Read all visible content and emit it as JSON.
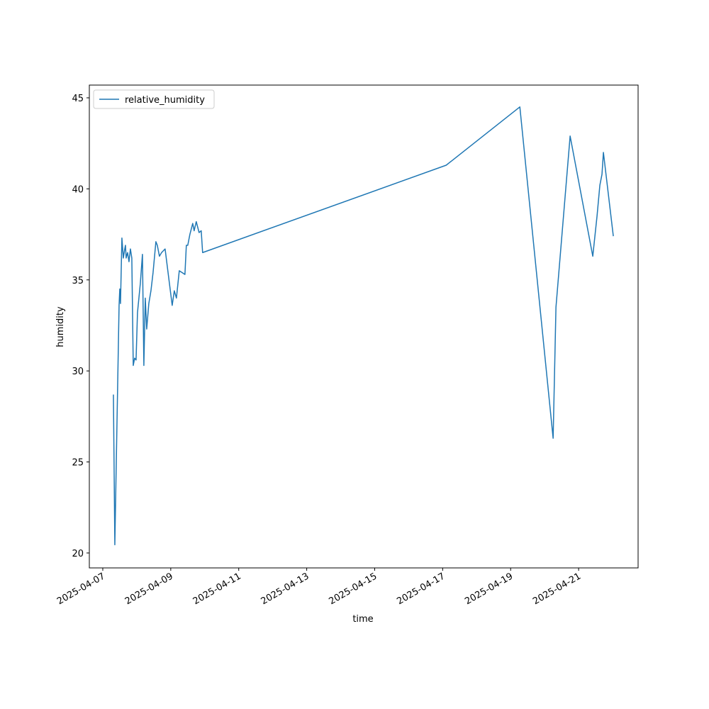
{
  "chart_data": {
    "type": "line",
    "xlabel": "time",
    "ylabel": "humidity",
    "x": [
      "2025-04-07 07:30",
      "2025-04-07 08:30",
      "2025-04-07 11:30",
      "2025-04-07 12:00",
      "2025-04-07 12:30",
      "2025-04-07 13:30",
      "2025-04-07 14:30",
      "2025-04-07 15:30",
      "2025-04-07 16:00",
      "2025-04-07 16:30",
      "2025-04-07 17:30",
      "2025-04-07 18:30",
      "2025-04-07 19:30",
      "2025-04-07 20:30",
      "2025-04-07 21:30",
      "2025-04-07 22:30",
      "2025-04-07 23:30",
      "2025-04-08 00:30",
      "2025-04-08 02:30",
      "2025-04-08 04:00",
      "2025-04-08 05:00",
      "2025-04-08 06:00",
      "2025-04-08 07:00",
      "2025-04-08 08:30",
      "2025-04-08 10:00",
      "2025-04-08 11:30",
      "2025-04-08 13:30",
      "2025-04-08 14:30",
      "2025-04-08 16:00",
      "2025-04-08 17:30",
      "2025-04-08 20:00",
      "2025-04-09 01:00",
      "2025-04-09 02:30",
      "2025-04-09 04:00",
      "2025-04-09 06:00",
      "2025-04-09 10:00",
      "2025-04-09 11:00",
      "2025-04-09 12:00",
      "2025-04-09 13:30",
      "2025-04-09 15:30",
      "2025-04-09 16:30",
      "2025-04-09 18:00",
      "2025-04-09 20:00",
      "2025-04-09 21:30",
      "2025-04-09 22:30",
      "2025-04-17 02:30",
      "2025-04-19 06:30",
      "2025-04-20 06:00",
      "2025-04-20 08:00",
      "2025-04-20 18:00",
      "2025-04-21 10:00",
      "2025-04-21 13:00",
      "2025-04-21 15:00",
      "2025-04-21 16:30",
      "2025-04-21 17:30",
      "2025-04-22 00:30"
    ],
    "series": [
      {
        "name": "relative_humidity",
        "color": "#1f77b4",
        "values": [
          28.7,
          20.45,
          33.6,
          34.5,
          33.7,
          37.3,
          36.2,
          36.7,
          36.9,
          36.2,
          36.5,
          36.0,
          36.7,
          36.2,
          30.3,
          30.7,
          30.6,
          33.2,
          34.8,
          36.4,
          30.3,
          34.0,
          32.3,
          33.7,
          34.4,
          35.4,
          37.1,
          36.9,
          36.3,
          36.5,
          36.7,
          33.6,
          34.4,
          34.0,
          35.5,
          35.3,
          36.9,
          36.9,
          37.5,
          38.1,
          37.7,
          38.2,
          37.6,
          37.7,
          36.5,
          41.3,
          44.5,
          26.3,
          33.5,
          42.9,
          36.3,
          38.5,
          40.2,
          40.8,
          42.0,
          37.4
        ]
      }
    ],
    "xlim": [
      "2025-04-06 14:30",
      "2025-04-22 18:00"
    ],
    "xticks": [
      "2025-04-07",
      "2025-04-09",
      "2025-04-11",
      "2025-04-13",
      "2025-04-15",
      "2025-04-17",
      "2025-04-19",
      "2025-04-21"
    ],
    "ylim": [
      19.18,
      45.7
    ],
    "yticks": [
      20,
      25,
      30,
      35,
      40,
      45
    ],
    "legend": "upper left"
  }
}
